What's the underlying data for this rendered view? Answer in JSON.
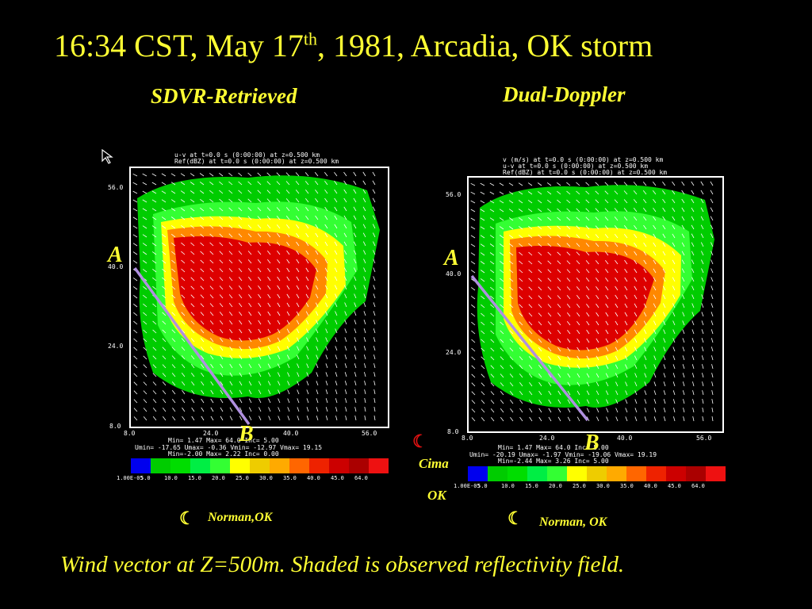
{
  "title_main": "16:34 CST, May 17",
  "title_sup": "th",
  "title_rest": ", 1981, Arcadia, OK storm",
  "left_subtitle": "SDVR-Retrieved",
  "right_subtitle": "Dual-Doppler",
  "caption": "Wind vector at Z=500m. Shaded is observed reflectivity field.",
  "colors": {
    "text": "#ffff33",
    "line": "#b090e0",
    "colorbar": [
      "#0000ee",
      "#00cc00",
      "#00dd00",
      "#00ee44",
      "#33ff33",
      "#ffff00",
      "#eecc00",
      "#ffaa00",
      "#ff6600",
      "#ee2200",
      "#cc0000",
      "#aa0000",
      "#ee1111"
    ]
  },
  "chart_data": [
    {
      "type": "heatmap",
      "panel": "left",
      "header": [
        "u-v at t=0.0 s (0:00:00) at z=0.500 km",
        "Ref(dBZ) at t=0.0 s (0:00:00) at z=0.500 km"
      ],
      "x_ticks": [
        "8.0",
        "24.0",
        "40.0",
        "56.0"
      ],
      "y_ticks": [
        "56.0",
        "40.0",
        "24.0",
        "8.0"
      ],
      "xlim": [
        8,
        56
      ],
      "ylim": [
        8,
        56
      ],
      "stats": [
        "Min= 1.47    Max= 64.0    Inc= 5.00",
        "Umin= -17.65 Umax= -0.36  Vmin= -12.97 Vmax= 19.15",
        "Min=-2.00    Max= 2.22   Inc= 0.00"
      ],
      "colorbar_labels": [
        "1.00E-05",
        "5.0",
        "10.0",
        "15.0",
        "20.0",
        "25.0",
        "30.0",
        "35.0",
        "40.0",
        "45.0",
        "64.0"
      ],
      "cross_section": {
        "A": "A",
        "B": "B"
      }
    },
    {
      "type": "heatmap",
      "panel": "right",
      "header": [
        "v (m/s) at t=0.0 s (0:00:00) at z=0.500 km",
        "u-v at t=0.0 s (0:00:00) at z=0.500 km",
        "Ref(dBZ) at t=0.0 s (0:00:00) at z=0.500 km"
      ],
      "x_ticks": [
        "8.0",
        "24.0",
        "40.0",
        "56.0"
      ],
      "y_ticks": [
        "56.0",
        "40.0",
        "24.0",
        "8.0"
      ],
      "xlim": [
        8,
        56
      ],
      "ylim": [
        8,
        56
      ],
      "stats": [
        "Min= 1.47    Max= 64.0    Inc= 5.00",
        "Umin= -20.19 Umax= -1.97 Vmin= -19.06 Vmax= 19.19",
        "Min=-2.44    Max= 3.26   Inc= 5.00"
      ],
      "colorbar_labels": [
        "1.00E-05",
        "5.0",
        "10.0",
        "15.0",
        "20.0",
        "25.0",
        "30.0",
        "35.0",
        "40.0",
        "45.0",
        "64.0"
      ],
      "cross_section": {
        "A": "A",
        "B": "B"
      }
    }
  ],
  "labels": {
    "norman_left": "Norman,OK",
    "norman_right": "Norman, OK",
    "cima_1": "Cima",
    "cima_2": "OK"
  }
}
